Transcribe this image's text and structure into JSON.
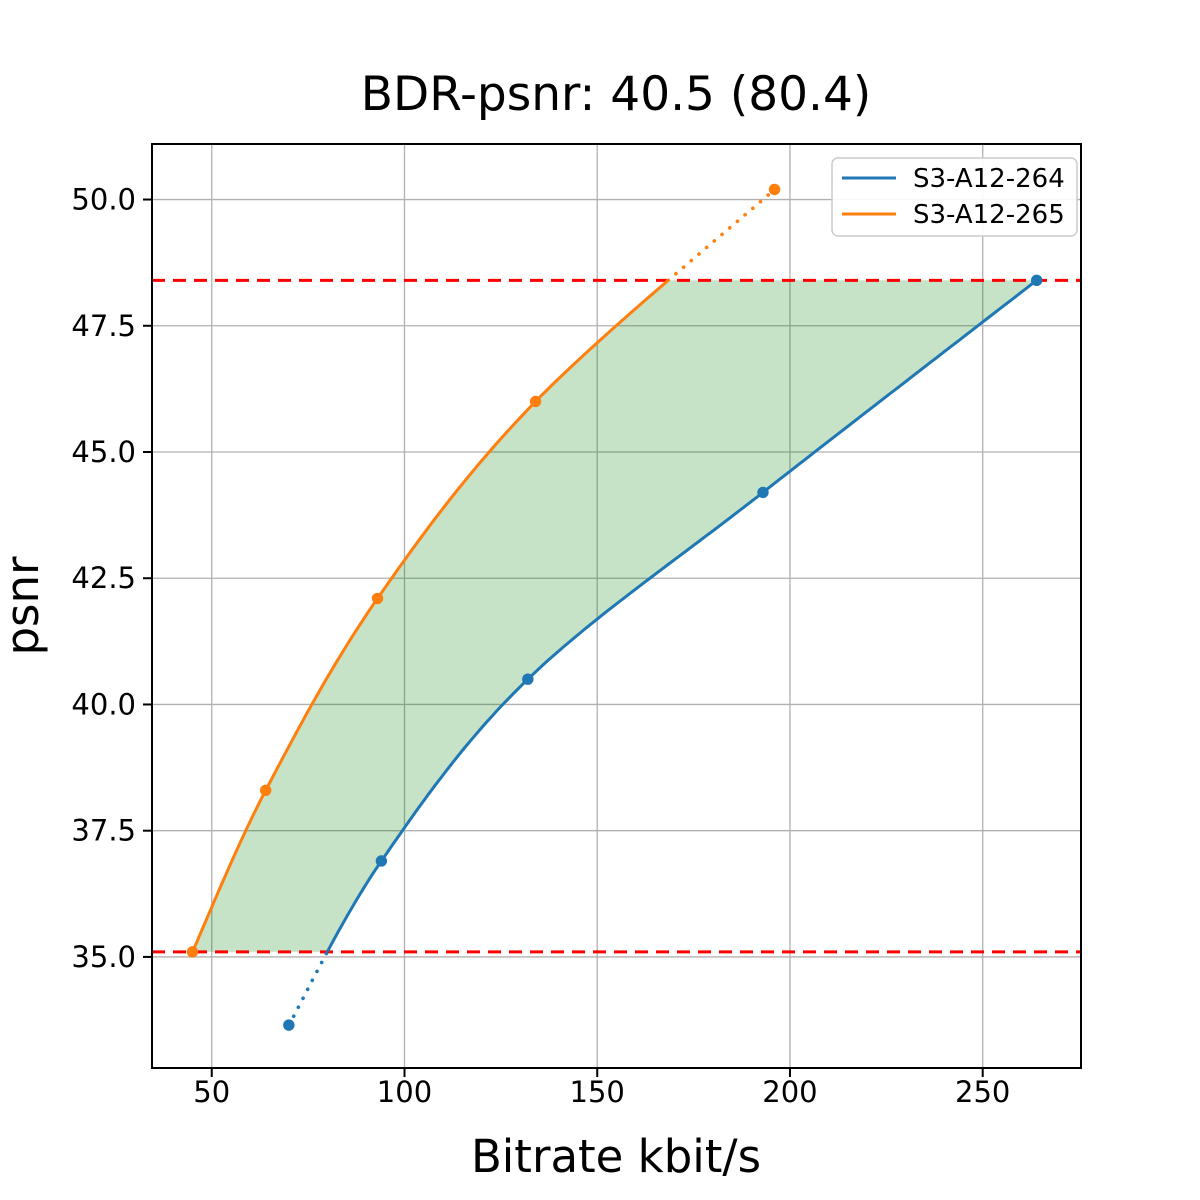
{
  "chart_data": {
    "type": "line",
    "title": "BDR-psnr: 40.5 (80.4)",
    "xlabel": "Bitrate kbit/s",
    "ylabel": "psnr",
    "xlim": [
      34.5,
      275.5
    ],
    "ylim": [
      32.8,
      51.1
    ],
    "xticks": [
      50,
      100,
      150,
      200,
      250
    ],
    "xtick_labels": [
      "50",
      "100",
      "150",
      "200",
      "250"
    ],
    "yticks": [
      35.0,
      37.5,
      40.0,
      42.5,
      45.0,
      47.5,
      50.0
    ],
    "ytick_labels": [
      "35.0",
      "37.5",
      "40.0",
      "42.5",
      "45.0",
      "47.5",
      "50.0"
    ],
    "grid": true,
    "grid_color": "#b0b0b0",
    "legend_position": "upper right",
    "series": [
      {
        "name": "S3-A12-264",
        "color": "#1f77b4",
        "points": [
          [
            70,
            33.65
          ],
          [
            94,
            36.9
          ],
          [
            132,
            40.5
          ],
          [
            193,
            44.2
          ],
          [
            264,
            48.4
          ]
        ]
      },
      {
        "name": "S3-A12-265",
        "color": "#ff7f0e",
        "points": [
          [
            45,
            35.1
          ],
          [
            64,
            38.3
          ],
          [
            93,
            42.1
          ],
          [
            134,
            46.0
          ],
          [
            196,
            50.2
          ]
        ]
      }
    ],
    "bd_interval": {
      "psnr_low": 35.1,
      "psnr_high": 48.4
    },
    "bound_lines": {
      "color": "#ff0000",
      "style": "dashed"
    },
    "shaded_region": {
      "color": "#008000",
      "opacity": 0.22
    }
  }
}
